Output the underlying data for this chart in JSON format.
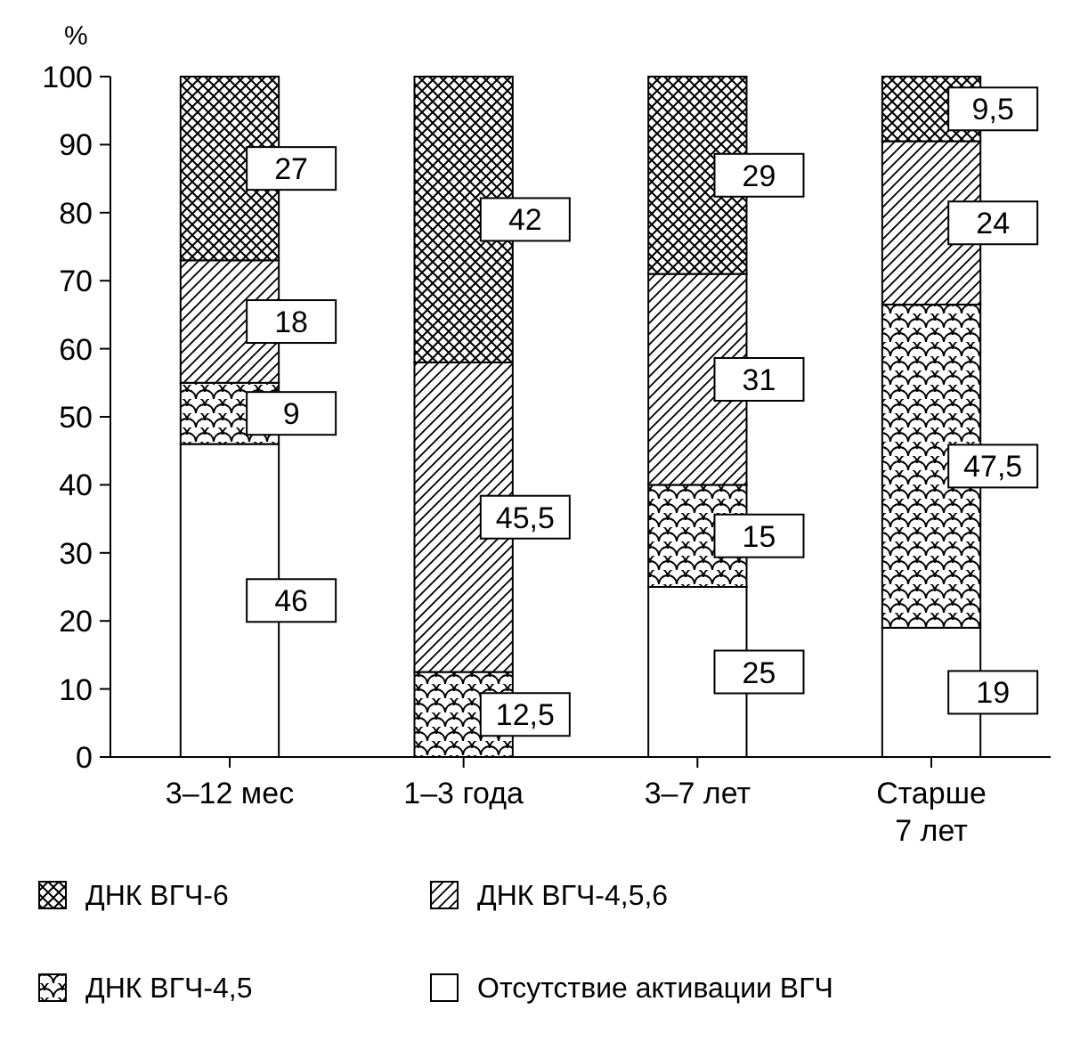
{
  "chart_data": {
    "type": "bar",
    "stacked": true,
    "ylabel": "%",
    "categories": [
      "3–12 мес",
      "1–3 года",
      "3–7 лет",
      "Старше 7 лет"
    ],
    "ylim": [
      0,
      100
    ],
    "yticks": [
      0,
      10,
      20,
      30,
      40,
      50,
      60,
      70,
      80,
      90,
      100
    ],
    "legend": "bottom",
    "grid": false,
    "series": [
      {
        "name": "Отсутствие активации ВГЧ",
        "color": "#ffffff",
        "values": [
          46,
          0,
          25,
          19
        ],
        "value_labels": [
          "46",
          null,
          "25",
          "19"
        ]
      },
      {
        "name": "ДНК ВГЧ-4,5",
        "color": "#000000",
        "values": [
          9,
          12.5,
          15,
          47.5
        ],
        "value_labels": [
          "9",
          "12,5",
          "15",
          "47,5"
        ]
      },
      {
        "name": "ДНК ВГЧ-4,5,6",
        "color": "#000000",
        "values": [
          18,
          45.5,
          31,
          24
        ],
        "value_labels": [
          "18",
          "45,5",
          "31",
          "24"
        ]
      },
      {
        "name": "ДНК ВГЧ-6",
        "color": "#000000",
        "values": [
          27,
          42,
          29,
          9.5
        ],
        "value_labels": [
          "27",
          "42",
          "29",
          "9,5"
        ]
      }
    ]
  }
}
